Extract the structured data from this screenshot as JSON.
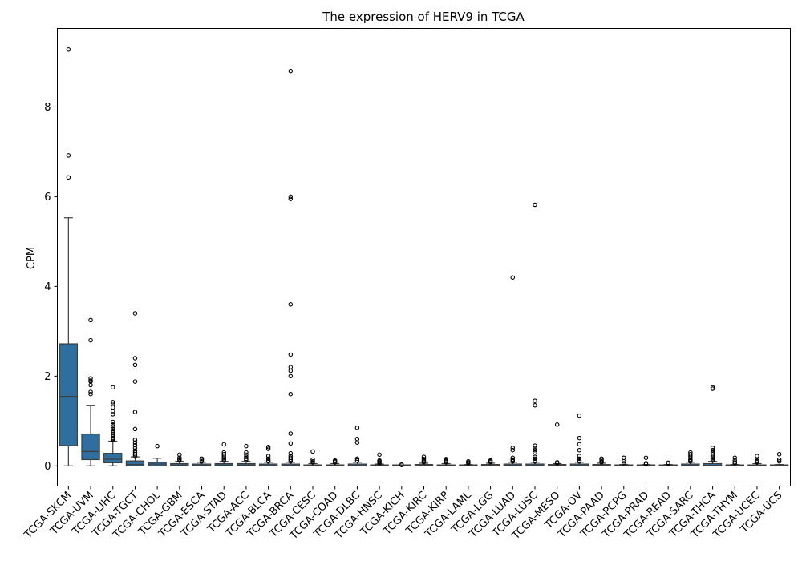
{
  "chart_data": {
    "type": "box",
    "title": "The expression of HERV9 in TCGA",
    "xlabel": "",
    "ylabel": "CPM",
    "ylim": [
      -0.45,
      9.75
    ],
    "yticks": [
      0,
      2,
      4,
      6,
      8
    ],
    "grid": false,
    "legend": "none",
    "box_color": "#2f6f9f",
    "categories": [
      "TCGA-SKCM",
      "TCGA-UVM",
      "TCGA-LIHC",
      "TCGA-TGCT",
      "TCGA-CHOL",
      "TCGA-GBM",
      "TCGA-ESCA",
      "TCGA-STAD",
      "TCGA-ACC",
      "TCGA-BLCA",
      "TCGA-BRCA",
      "TCGA-CESC",
      "TCGA-COAD",
      "TCGA-DLBC",
      "TCGA-HNSC",
      "TCGA-KICH",
      "TCGA-KIRC",
      "TCGA-KIRP",
      "TCGA-LAML",
      "TCGA-LGG",
      "TCGA-LUAD",
      "TCGA-LUSC",
      "TCGA-MESO",
      "TCGA-OV",
      "TCGA-PAAD",
      "TCGA-PCPG",
      "TCGA-PRAD",
      "TCGA-READ",
      "TCGA-SARC",
      "TCGA-THCA",
      "TCGA-THYM",
      "TCGA-UCEC",
      "TCGA-UCS"
    ],
    "boxes": [
      {
        "min": 0,
        "q1": 0.45,
        "median": 1.55,
        "q3": 2.72,
        "max": 5.53,
        "outliers": [
          9.28,
          6.92,
          6.43
        ]
      },
      {
        "min": 0,
        "q1": 0.14,
        "median": 0.32,
        "q3": 0.71,
        "max": 1.35,
        "outliers": [
          3.25,
          2.8,
          1.95,
          1.9,
          1.88,
          1.8,
          1.65,
          1.6
        ]
      },
      {
        "min": 0,
        "q1": 0.07,
        "median": 0.15,
        "q3": 0.28,
        "max": 0.55,
        "outliers": [
          1.75,
          1.42,
          1.38,
          1.3,
          1.22,
          1.15,
          0.98,
          0.92,
          0.88,
          0.82,
          0.78,
          0.74,
          0.7,
          0.66,
          0.62,
          0.6,
          0.58
        ]
      },
      {
        "min": 0,
        "q1": 0.0,
        "median": 0.03,
        "q3": 0.11,
        "max": 0.2,
        "outliers": [
          3.4,
          2.4,
          2.25,
          1.88,
          1.2,
          0.82,
          0.58,
          0.52,
          0.46,
          0.4,
          0.34,
          0.3,
          0.26,
          0.22
        ]
      },
      {
        "min": 0,
        "q1": 0.0,
        "median": 0.04,
        "q3": 0.08,
        "max": 0.17,
        "outliers": [
          0.44
        ]
      },
      {
        "min": 0,
        "q1": 0.0,
        "median": 0.02,
        "q3": 0.05,
        "max": 0.1,
        "outliers": [
          0.25,
          0.18,
          0.15,
          0.12
        ]
      },
      {
        "min": 0,
        "q1": 0.0,
        "median": 0.01,
        "q3": 0.04,
        "max": 0.08,
        "outliers": [
          0.16,
          0.13,
          0.1
        ]
      },
      {
        "min": 0,
        "q1": 0.0,
        "median": 0.02,
        "q3": 0.05,
        "max": 0.1,
        "outliers": [
          0.48,
          0.3,
          0.26,
          0.22,
          0.18,
          0.15,
          0.12
        ]
      },
      {
        "min": 0,
        "q1": 0.0,
        "median": 0.02,
        "q3": 0.05,
        "max": 0.1,
        "outliers": [
          0.44,
          0.3,
          0.25,
          0.2,
          0.16,
          0.13
        ]
      },
      {
        "min": 0,
        "q1": 0.0,
        "median": 0.01,
        "q3": 0.04,
        "max": 0.08,
        "outliers": [
          0.42,
          0.38,
          0.22,
          0.16,
          0.12,
          0.1
        ]
      },
      {
        "min": 0,
        "q1": 0.0,
        "median": 0.01,
        "q3": 0.04,
        "max": 0.08,
        "outliers": [
          8.8,
          6.0,
          5.95,
          3.6,
          2.48,
          2.2,
          2.12,
          2.0,
          1.6,
          0.72,
          0.5,
          0.28,
          0.22,
          0.18,
          0.14,
          0.1
        ]
      },
      {
        "min": 0,
        "q1": 0.0,
        "median": 0.0,
        "q3": 0.02,
        "max": 0.05,
        "outliers": [
          0.32,
          0.14,
          0.1,
          0.08
        ]
      },
      {
        "min": 0,
        "q1": 0.0,
        "median": 0.0,
        "q3": 0.02,
        "max": 0.05,
        "outliers": [
          0.12,
          0.1,
          0.08
        ]
      },
      {
        "min": 0,
        "q1": 0.0,
        "median": 0.01,
        "q3": 0.04,
        "max": 0.08,
        "outliers": [
          0.85,
          0.6,
          0.52,
          0.16,
          0.12
        ]
      },
      {
        "min": 0,
        "q1": 0.0,
        "median": 0.0,
        "q3": 0.02,
        "max": 0.04,
        "outliers": [
          0.25,
          0.12,
          0.1,
          0.08,
          0.06
        ]
      },
      {
        "min": 0,
        "q1": 0.0,
        "median": 0.0,
        "q3": 0.0,
        "max": 0.01,
        "outliers": [
          0.03,
          0.02
        ]
      },
      {
        "min": 0,
        "q1": 0.0,
        "median": 0.01,
        "q3": 0.03,
        "max": 0.06,
        "outliers": [
          0.2,
          0.15,
          0.12,
          0.1,
          0.08
        ]
      },
      {
        "min": 0,
        "q1": 0.0,
        "median": 0.0,
        "q3": 0.02,
        "max": 0.05,
        "outliers": [
          0.15,
          0.12,
          0.1,
          0.08
        ]
      },
      {
        "min": 0,
        "q1": 0.0,
        "median": 0.0,
        "q3": 0.01,
        "max": 0.03,
        "outliers": [
          0.1,
          0.08,
          0.06
        ]
      },
      {
        "min": 0,
        "q1": 0.0,
        "median": 0.01,
        "q3": 0.03,
        "max": 0.06,
        "outliers": [
          0.12,
          0.1,
          0.08
        ]
      },
      {
        "min": 0,
        "q1": 0.0,
        "median": 0.01,
        "q3": 0.04,
        "max": 0.08,
        "outliers": [
          4.2,
          0.4,
          0.35,
          0.18,
          0.14,
          0.12,
          0.1
        ]
      },
      {
        "min": 0,
        "q1": 0.0,
        "median": 0.01,
        "q3": 0.04,
        "max": 0.08,
        "outliers": [
          5.82,
          1.45,
          1.35,
          0.45,
          0.4,
          0.35,
          0.3,
          0.2,
          0.16,
          0.12,
          0.1
        ]
      },
      {
        "min": 0,
        "q1": 0.0,
        "median": 0.01,
        "q3": 0.03,
        "max": 0.05,
        "outliers": [
          0.92,
          0.08,
          0.06
        ]
      },
      {
        "min": 0,
        "q1": 0.0,
        "median": 0.01,
        "q3": 0.04,
        "max": 0.08,
        "outliers": [
          1.12,
          0.62,
          0.48,
          0.35,
          0.22,
          0.16,
          0.12,
          0.1
        ]
      },
      {
        "min": 0,
        "q1": 0.0,
        "median": 0.01,
        "q3": 0.03,
        "max": 0.06,
        "outliers": [
          0.16,
          0.13,
          0.1,
          0.08
        ]
      },
      {
        "min": 0,
        "q1": 0.0,
        "median": 0.0,
        "q3": 0.01,
        "max": 0.03,
        "outliers": [
          0.18,
          0.1,
          0.06
        ]
      },
      {
        "min": 0,
        "q1": 0.0,
        "median": 0.0,
        "q3": 0.01,
        "max": 0.03,
        "outliers": [
          0.18,
          0.06,
          0.04
        ]
      },
      {
        "min": 0,
        "q1": 0.0,
        "median": 0.0,
        "q3": 0.01,
        "max": 0.03,
        "outliers": [
          0.07,
          0.05
        ]
      },
      {
        "min": 0,
        "q1": 0.0,
        "median": 0.01,
        "q3": 0.04,
        "max": 0.08,
        "outliers": [
          0.3,
          0.26,
          0.22,
          0.18,
          0.14,
          0.12,
          0.1
        ]
      },
      {
        "min": 0,
        "q1": 0.0,
        "median": 0.01,
        "q3": 0.05,
        "max": 0.1,
        "outliers": [
          1.75,
          1.72,
          0.4,
          0.35,
          0.3,
          0.26,
          0.22,
          0.18,
          0.15,
          0.12
        ]
      },
      {
        "min": 0,
        "q1": 0.0,
        "median": 0.0,
        "q3": 0.01,
        "max": 0.03,
        "outliers": [
          0.18,
          0.12,
          0.08,
          0.06
        ]
      },
      {
        "min": 0,
        "q1": 0.0,
        "median": 0.0,
        "q3": 0.02,
        "max": 0.05,
        "outliers": [
          0.22,
          0.12,
          0.1,
          0.08
        ]
      },
      {
        "min": 0,
        "q1": 0.0,
        "median": 0.0,
        "q3": 0.01,
        "max": 0.03,
        "outliers": [
          0.26,
          0.14,
          0.1
        ]
      }
    ]
  }
}
